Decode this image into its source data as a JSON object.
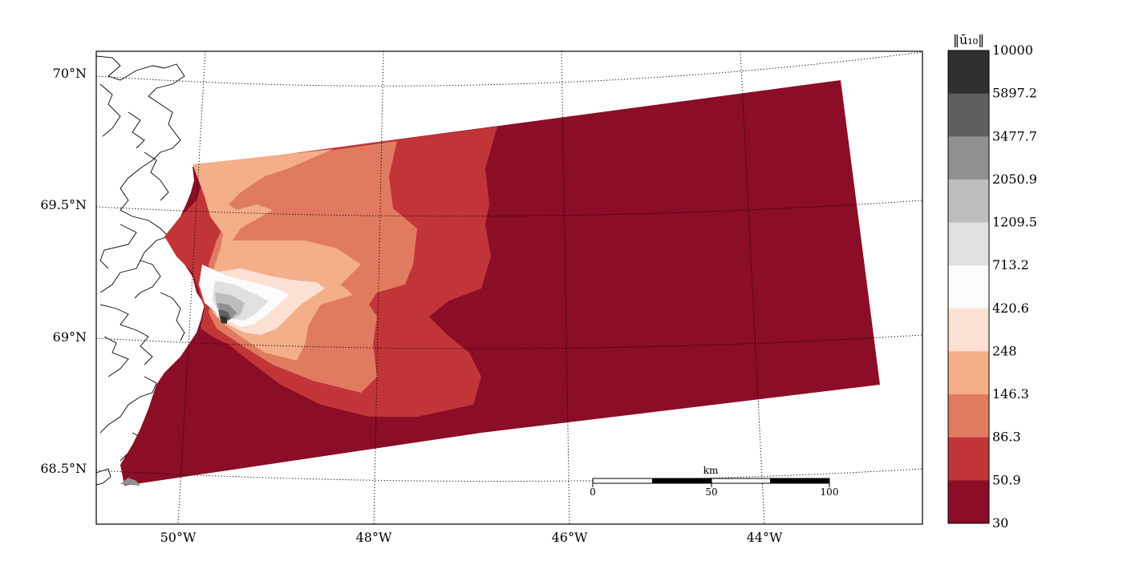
{
  "map": {
    "lat_labels": [
      "70°N",
      "69.5°N",
      "69°N",
      "68.5°N"
    ],
    "lon_labels": [
      "50°W",
      "48°W",
      "46°W",
      "44°W"
    ],
    "scalebar": {
      "unit": "km",
      "ticks": [
        "0",
        "50",
        "100"
      ]
    }
  },
  "colorbar": {
    "title": "‖ū₁₀‖",
    "levels": [
      "10000",
      "5897.2",
      "3477.7",
      "2050.9",
      "1209.5",
      "713.2",
      "420.6",
      "248",
      "146.3",
      "86.3",
      "50.9",
      "30"
    ],
    "colors": [
      "#2f2f2f",
      "#5f5f5f",
      "#909090",
      "#bdbdbd",
      "#e0e0e0",
      "#fbfbfb",
      "#fbe0d3",
      "#f4ae89",
      "#e07b61",
      "#c13539",
      "#8b0d26"
    ]
  }
}
